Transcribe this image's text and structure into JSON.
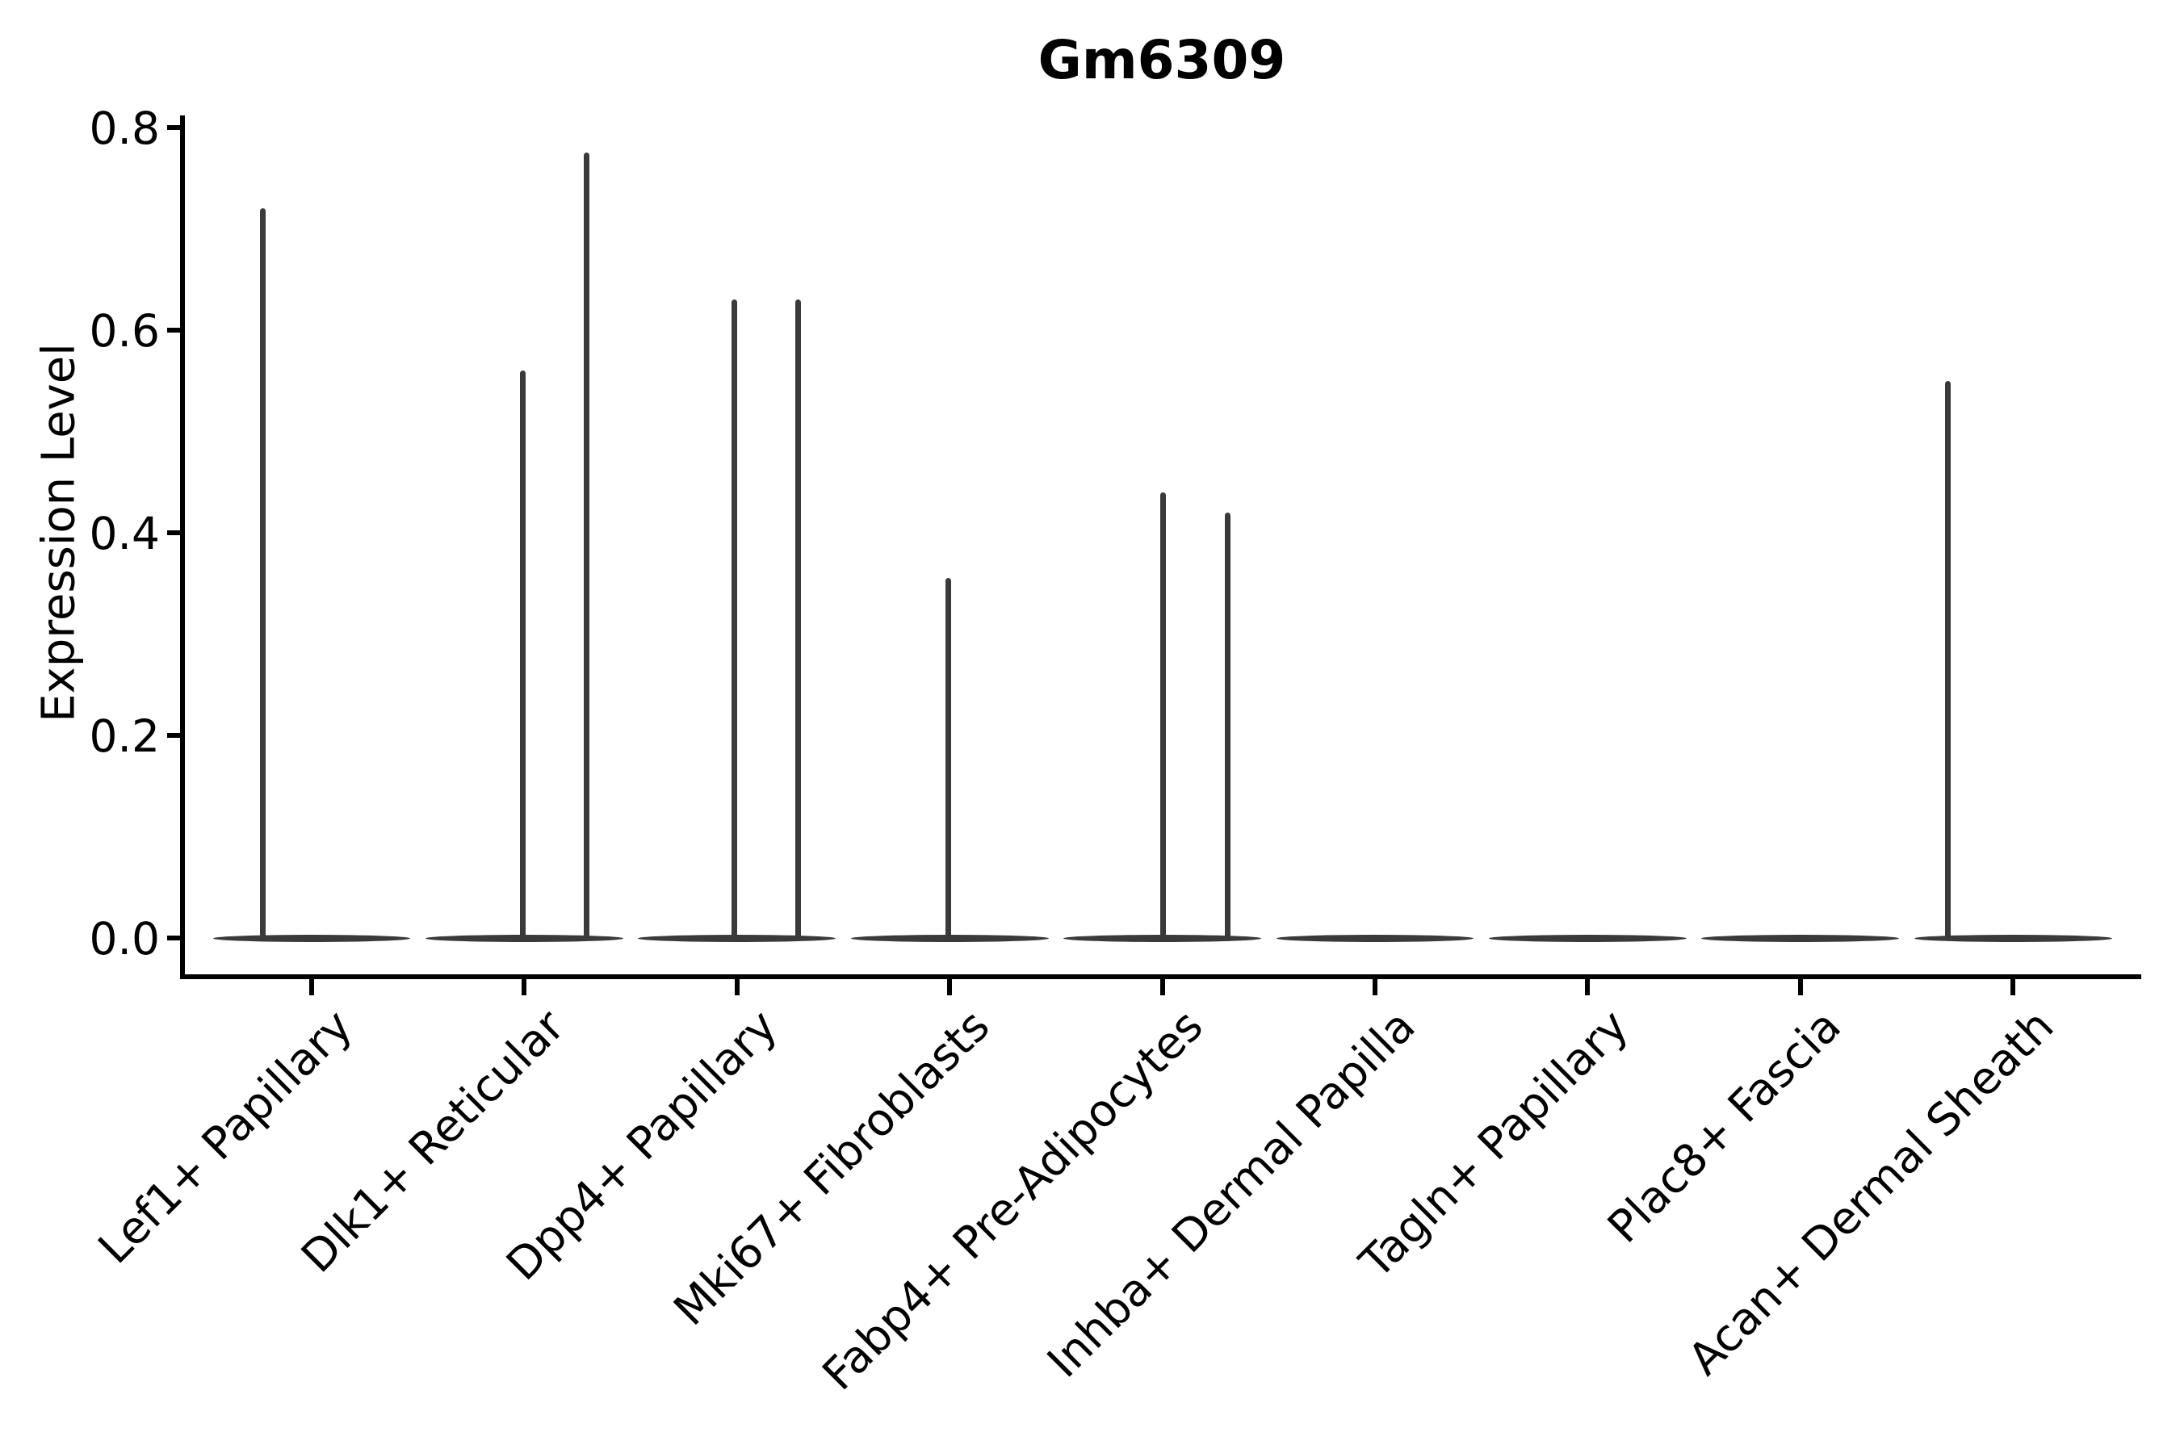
{
  "chart_data": {
    "type": "violin",
    "title": "Gm6309",
    "xlabel": "",
    "ylabel": "Expression Level",
    "ylim": [
      0.0,
      0.8
    ],
    "yticks": [
      0.0,
      0.2,
      0.4,
      0.6,
      0.8
    ],
    "ytick_labels": [
      "0.0",
      "0.2",
      "0.4",
      "0.6",
      "0.8"
    ],
    "grid": false,
    "legend": null,
    "categories": [
      "Lef1+ Papillary",
      "Dlk1+ Reticular",
      "Dpp4+ Papillary",
      "Mki67+ Fibroblasts",
      "Fabp4+ Pre-Adipocytes",
      "Inhba+ Dermal Papilla",
      "Tagln+ Papillary",
      "Plac8+ Fascia",
      "Acan+ Dermal Sheath"
    ],
    "series": [
      {
        "category": "Lef1+ Papillary",
        "zero_body": true,
        "spikes": [
          {
            "max_value": 0.72,
            "dx_frac": -0.228
          }
        ]
      },
      {
        "category": "Dlk1+ Reticular",
        "zero_body": true,
        "spikes": [
          {
            "max_value": 0.56,
            "dx_frac": -0.008
          },
          {
            "max_value": 0.775,
            "dx_frac": 0.292
          }
        ]
      },
      {
        "category": "Dpp4+ Papillary",
        "zero_body": true,
        "spikes": [
          {
            "max_value": 0.63,
            "dx_frac": -0.011
          },
          {
            "max_value": 0.63,
            "dx_frac": 0.289
          }
        ]
      },
      {
        "category": "Mki67+ Fibroblasts",
        "zero_body": true,
        "spikes": [
          {
            "max_value": 0.355,
            "dx_frac": -0.008
          }
        ]
      },
      {
        "category": "Fabp4+ Pre-Adipocytes",
        "zero_body": true,
        "spikes": [
          {
            "max_value": 0.44,
            "dx_frac": 0.004
          },
          {
            "max_value": 0.42,
            "dx_frac": 0.308
          }
        ]
      },
      {
        "category": "Inhba+ Dermal Papilla",
        "zero_body": true,
        "spikes": []
      },
      {
        "category": "Tagln+ Papillary",
        "zero_body": true,
        "spikes": []
      },
      {
        "category": "Plac8+ Fascia",
        "zero_body": true,
        "spikes": []
      },
      {
        "category": "Acan+ Dermal Sheath",
        "zero_body": true,
        "spikes": [
          {
            "max_value": 0.55,
            "dx_frac": -0.308
          }
        ]
      }
    ],
    "style": {
      "violin_color": "#3a3a3a",
      "axis_color": "#000000",
      "text_color": "#000000",
      "background": "#ffffff",
      "body_width_frac": 0.93
    }
  }
}
